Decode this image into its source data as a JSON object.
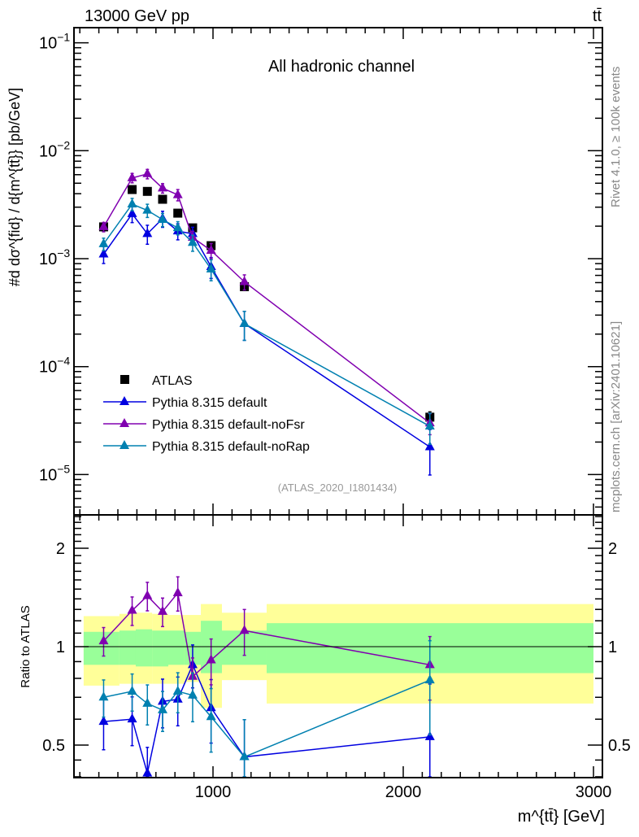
{
  "header": {
    "left": "13000 GeV pp",
    "right": "tt̄"
  },
  "side_labels": {
    "top": "Rivet 4.1.0, ≥ 100k events",
    "bottom": "mcplots.cern.ch [arXiv:2401.10621]"
  },
  "chart_data": [
    {
      "type": "scatter",
      "title": "All hadronic channel",
      "annotation": "(ATLAS_2020_I1801434)",
      "ylabel": "#d dσ^{fid} / d{m^{tt̄}} [pb/GeV]",
      "yscale": "log",
      "ylim": [
        4.3e-06,
        0.138
      ],
      "xlim": [
        270,
        3050
      ],
      "ytick_labels": [
        "10^-1",
        "10^-2",
        "10^-3",
        "10^-4",
        "10^-5"
      ],
      "ytick_values": [
        0.1,
        0.01,
        0.001,
        0.0001,
        1e-05
      ],
      "legend_position": "bottom-left",
      "x": [
        425,
        575,
        655,
        735,
        815,
        893,
        990,
        1165,
        2140
      ],
      "series": [
        {
          "name": "ATLAS",
          "marker": "square",
          "color": "#000000",
          "values": [
            0.00197,
            0.00437,
            0.0042,
            0.00355,
            0.00264,
            0.00193,
            0.00132,
            0.00055,
            3.4e-05
          ],
          "rel_err": [
            0.05,
            0.04,
            0.04,
            0.04,
            0.05,
            0.05,
            0.07,
            0.08,
            0.12
          ]
        },
        {
          "name": "Pythia 8.315 default",
          "marker": "triangle",
          "color": "#0000e0",
          "values": [
            0.0011,
            0.0026,
            0.0017,
            0.00235,
            0.0018,
            0.0017,
            0.00084,
            0.00025,
            1.8e-05
          ],
          "rel_err": [
            0.18,
            0.17,
            0.2,
            0.17,
            0.17,
            0.15,
            0.22,
            0.3,
            0.45
          ]
        },
        {
          "name": "Pythia 8.315 default-noFsr",
          "marker": "triangle",
          "color": "#8000b0",
          "values": [
            0.00197,
            0.0056,
            0.0061,
            0.0045,
            0.0039,
            0.00157,
            0.00119,
            0.00061,
            3e-05
          ],
          "rel_err": [
            0.1,
            0.1,
            0.1,
            0.1,
            0.12,
            0.14,
            0.16,
            0.16,
            0.22
          ]
        },
        {
          "name": "Pythia 8.315 default-noRap",
          "marker": "triangle",
          "color": "#0080b0",
          "values": [
            0.00137,
            0.0032,
            0.0028,
            0.0023,
            0.00193,
            0.00141,
            0.0008,
            0.00025,
            2.8e-05
          ],
          "rel_err": [
            0.13,
            0.13,
            0.14,
            0.14,
            0.14,
            0.17,
            0.22,
            0.3,
            0.32
          ]
        }
      ]
    },
    {
      "type": "scatter",
      "ylabel": "Ratio to ATLAS",
      "xlabel": "m^{tt̄} [GeV]",
      "yscale": "log",
      "ylim": [
        0.4,
        2.53
      ],
      "xlim": [
        270,
        3050
      ],
      "xtick_labels": [
        "1000",
        "2000",
        "3000"
      ],
      "xtick_values": [
        1000,
        2000,
        3000
      ],
      "ytick_labels": [
        "2",
        "1",
        "0.5"
      ],
      "ytick_values": [
        2,
        1,
        0.5
      ],
      "bands": {
        "edges": [
          320,
          508,
          594,
          680,
          765,
          850,
          936,
          1047,
          1282,
          3000
        ],
        "total": [
          [
            0.76,
            1.24
          ],
          [
            0.77,
            1.26
          ],
          [
            0.77,
            1.27
          ],
          [
            0.77,
            1.26
          ],
          [
            0.77,
            1.25
          ],
          [
            0.78,
            1.25
          ],
          [
            0.65,
            1.35
          ],
          [
            0.79,
            1.27
          ],
          [
            0.67,
            1.35
          ]
        ],
        "stat": [
          [
            0.88,
            1.11
          ],
          [
            0.88,
            1.12
          ],
          [
            0.87,
            1.13
          ],
          [
            0.87,
            1.12
          ],
          [
            0.88,
            1.12
          ],
          [
            0.88,
            1.11
          ],
          [
            0.83,
            1.2
          ],
          [
            0.88,
            1.12
          ],
          [
            0.83,
            1.18
          ]
        ],
        "colors": {
          "total": "#ffff99",
          "stat": "#99ff99"
        }
      },
      "series": [
        {
          "name": "Pythia 8.315 default",
          "color": "#0000e0",
          "values": [
            0.59,
            0.6,
            0.41,
            0.68,
            0.69,
            0.88,
            0.65,
            0.46,
            0.53
          ],
          "rel_err": [
            0.18,
            0.17,
            0.2,
            0.17,
            0.17,
            0.15,
            0.22,
            0.3,
            0.45
          ]
        },
        {
          "name": "Pythia 8.315 default-noFsr",
          "color": "#8000b0",
          "values": [
            1.04,
            1.29,
            1.43,
            1.28,
            1.46,
            0.81,
            0.91,
            1.12,
            0.88
          ],
          "rel_err": [
            0.1,
            0.1,
            0.1,
            0.1,
            0.12,
            0.14,
            0.16,
            0.16,
            0.22
          ]
        },
        {
          "name": "Pythia 8.315 default-noRap",
          "color": "#0080b0",
          "values": [
            0.7,
            0.73,
            0.67,
            0.64,
            0.73,
            0.71,
            0.61,
            0.46,
            0.79
          ],
          "rel_err": [
            0.13,
            0.13,
            0.14,
            0.14,
            0.14,
            0.17,
            0.22,
            0.3,
            0.32
          ]
        }
      ]
    }
  ]
}
